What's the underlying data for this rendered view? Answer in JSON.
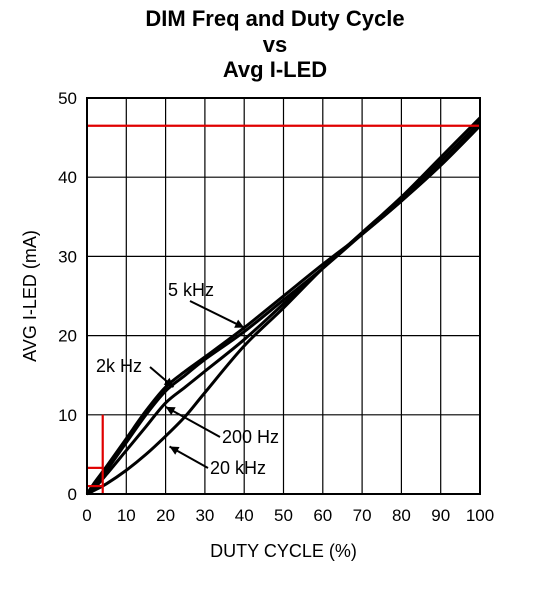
{
  "chart_data": {
    "type": "line",
    "title": [
      "DIM Freq and Duty Cycle",
      "vs",
      "Avg I-LED"
    ],
    "xlabel": "DUTY CYCLE (%)",
    "ylabel": "AVG I-LED (mA)",
    "xlim": [
      0,
      100
    ],
    "ylim": [
      0,
      50
    ],
    "xticks": [
      0,
      10,
      20,
      30,
      40,
      50,
      60,
      70,
      80,
      90,
      100
    ],
    "yticks": [
      0,
      10,
      20,
      30,
      40,
      50
    ],
    "grid": true,
    "series": [
      {
        "name": "5 kHz",
        "x": [
          0,
          2,
          5,
          10,
          15,
          20,
          25,
          30,
          40,
          50,
          60,
          70,
          80,
          90,
          100
        ],
        "y": [
          0,
          1.5,
          3.5,
          7,
          10.5,
          13.5,
          15.5,
          17.3,
          21,
          25,
          29,
          32.8,
          37,
          41.5,
          46.5
        ]
      },
      {
        "name": "2k Hz",
        "x": [
          0,
          2,
          5,
          10,
          15,
          20,
          25,
          30,
          40,
          50,
          60,
          70,
          80,
          90,
          100
        ],
        "y": [
          0,
          1.2,
          3,
          6.5,
          10,
          13,
          15,
          17,
          20.5,
          24.5,
          28.5,
          32.8,
          37,
          41.5,
          46.5
        ]
      },
      {
        "name": "200 Hz",
        "x": [
          0,
          2,
          5,
          10,
          15,
          20,
          25,
          30,
          40,
          50,
          60,
          70,
          80,
          90,
          100
        ],
        "y": [
          0,
          0.8,
          2.5,
          5.5,
          8.5,
          11.5,
          13.5,
          15.5,
          19.5,
          24,
          28.5,
          33,
          37.3,
          42,
          47
        ]
      },
      {
        "name": "20 kHz",
        "x": [
          0,
          2,
          5,
          10,
          15,
          20,
          25,
          30,
          40,
          50,
          60,
          70,
          80,
          90,
          100
        ],
        "y": [
          0,
          0.5,
          1.3,
          3,
          5,
          7.3,
          9.8,
          12.8,
          18.7,
          23.5,
          28.5,
          33,
          37.5,
          42.5,
          47.5
        ]
      }
    ],
    "annotations": [
      {
        "text": "5 kHz",
        "target": [
          40,
          21
        ]
      },
      {
        "text": "2k Hz",
        "target": [
          22,
          13.5
        ]
      },
      {
        "text": "200 Hz",
        "target": [
          20,
          11
        ]
      },
      {
        "text": "20 kHz",
        "target": [
          21,
          6
        ]
      }
    ],
    "reference_lines": [
      {
        "type": "hline",
        "y": 46.5,
        "x_from": 0,
        "x_to": 100,
        "color": "#e00000"
      },
      {
        "type": "vline",
        "x": 4,
        "y_from": 0,
        "y_to": 10,
        "color": "#e00000"
      },
      {
        "type": "hline",
        "y": 3.3,
        "x_from": 0,
        "x_to": 4,
        "color": "#e00000"
      },
      {
        "type": "hline",
        "y": 1,
        "x_from": 0,
        "x_to": 4,
        "color": "#e00000"
      }
    ],
    "line_color": "#000000"
  }
}
